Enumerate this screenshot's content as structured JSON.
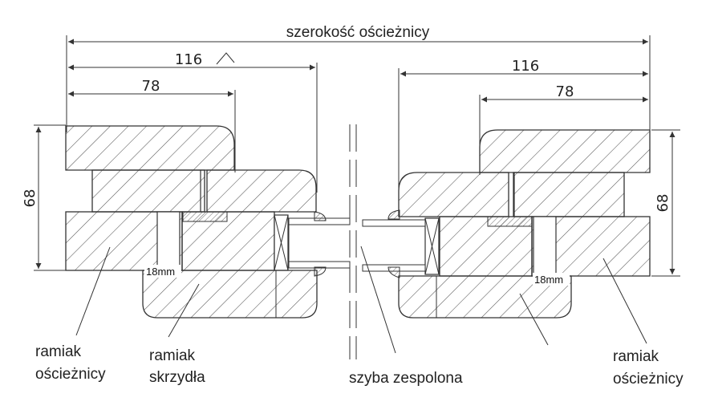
{
  "dimensions": {
    "overall_width_label": "szerokość ościeżnicy",
    "left_frame_width": "116",
    "left_sash_width": "78",
    "right_frame_width": "116",
    "right_sash_width": "78",
    "left_height": "68",
    "right_height": "68",
    "left_gap": "18mm",
    "right_gap": "18mm"
  },
  "labels": {
    "left_frame_line1": "ramiak",
    "left_frame_line2": "ościeżnicy",
    "sash_line1": "ramiak",
    "sash_line2": "skrzydła",
    "glass": "szyba zespolona",
    "right_frame_line1": "ramiak",
    "right_frame_line2": "ościeżnicy"
  },
  "colors": {
    "line": "#333333",
    "hatch": "#555555",
    "background": "#ffffff"
  }
}
